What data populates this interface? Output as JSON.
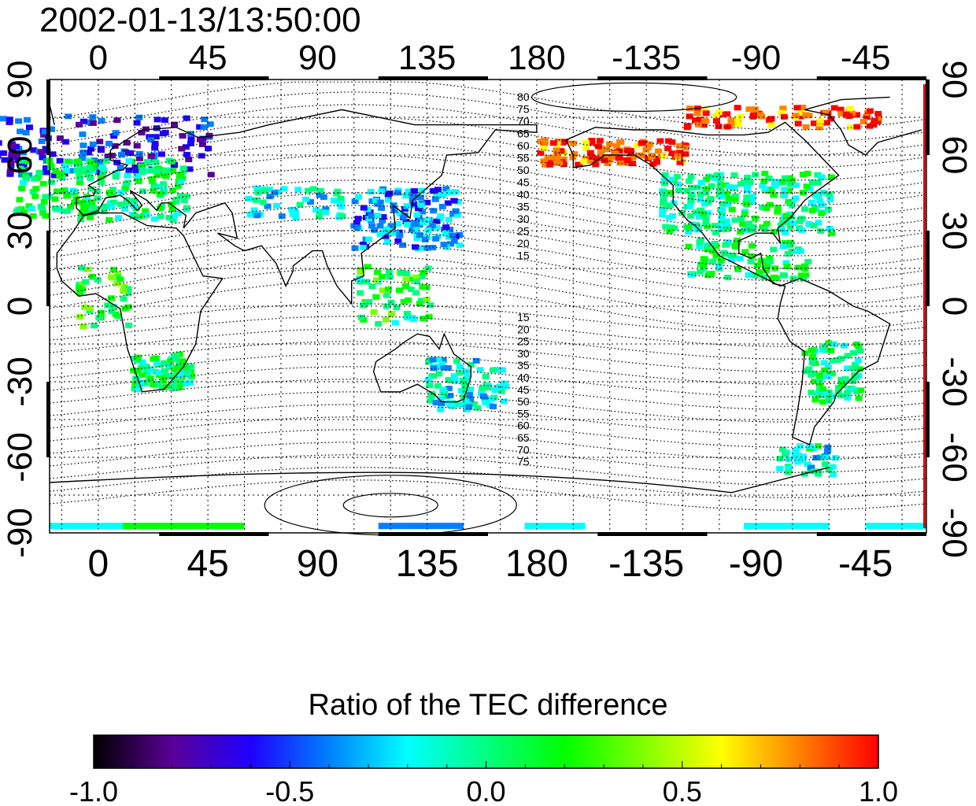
{
  "header": {
    "timestamp": "2002-01-13/13:50:00"
  },
  "axes": {
    "x_ticks": [
      "0",
      "45",
      "90",
      "135",
      "180",
      "-135",
      "-90",
      "-45"
    ],
    "y_left_ticks": [
      "90",
      "60",
      "30",
      "0",
      "-30",
      "-60",
      "-90"
    ],
    "y_right_ticks": [
      "90",
      "60",
      "30",
      "0",
      "-30",
      "-60",
      "-90"
    ],
    "grid": "dotted-15-deg"
  },
  "contours": {
    "north_labels": [
      "80",
      "75",
      "70",
      "65",
      "60",
      "55",
      "50",
      "45",
      "40",
      "35",
      "30",
      "25",
      "20",
      "15"
    ],
    "south_labels": [
      "15",
      "20",
      "25",
      "30",
      "35",
      "40",
      "45",
      "50",
      "55",
      "60",
      "65",
      "70",
      "75"
    ]
  },
  "colorbar": {
    "title": "Ratio of the TEC difference",
    "tick_labels": [
      "-1.0",
      "-0.5",
      "0.0",
      "0.5",
      "1.0"
    ],
    "range": [
      -1.0,
      1.0
    ],
    "colors": [
      "#000000",
      "#5a0096",
      "#1f00ff",
      "#0080ff",
      "#00ffff",
      "#00ff80",
      "#00ff00",
      "#80ff00",
      "#ffff00",
      "#ff8000",
      "#ff0000"
    ]
  }
}
